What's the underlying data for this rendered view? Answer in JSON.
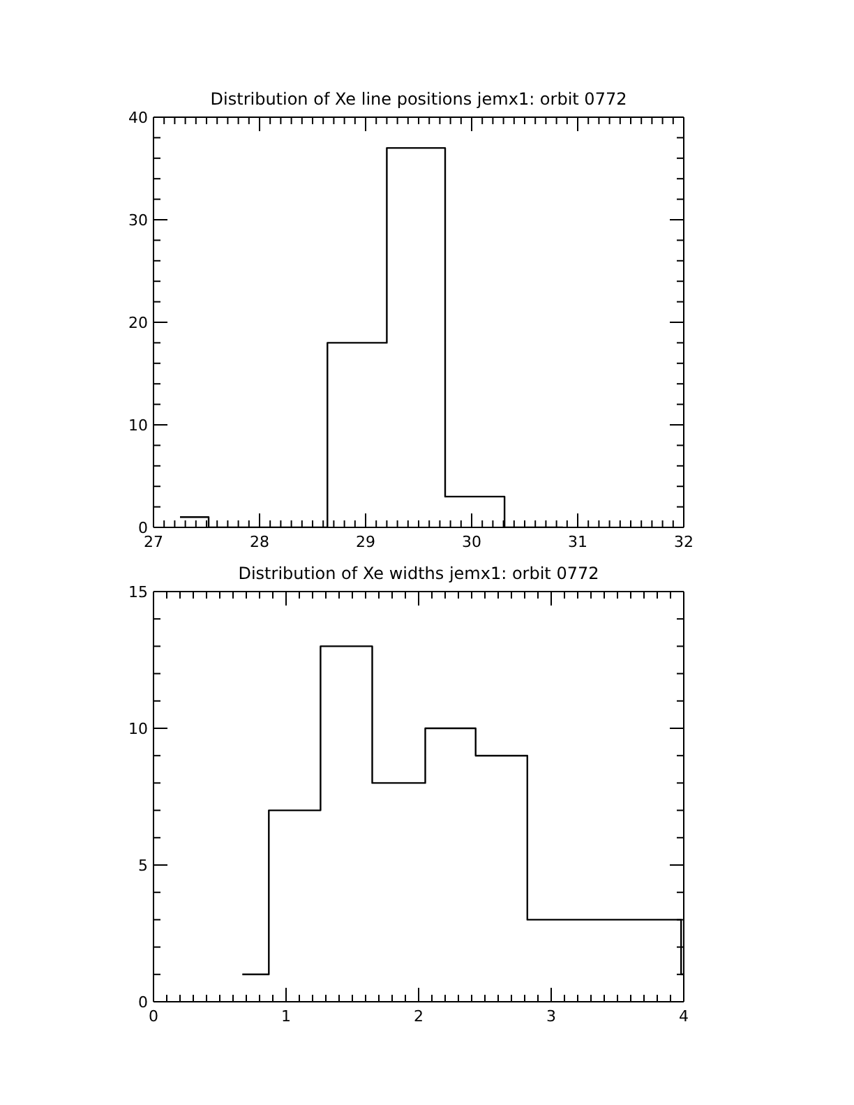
{
  "chart_data": [
    {
      "type": "histogram",
      "title": "Distribution of Xe line positions jemx1: orbit 0772",
      "bins": [
        27.25,
        27.52,
        28.08,
        28.64,
        29.2,
        29.75,
        30.31,
        30.86
      ],
      "values": [
        1,
        0,
        0,
        18,
        37,
        3,
        0
      ],
      "xlim": [
        27,
        32
      ],
      "ylim": [
        0,
        40
      ],
      "xticks": [
        27,
        {
          "value": 27.1,
          "label": null
        },
        {
          "value": 27.2,
          "label": null
        },
        {
          "value": 27.3,
          "label": null
        },
        {
          "value": 27.4,
          "label": null
        },
        {
          "value": 27.5,
          "label": null
        },
        {
          "value": 27.6,
          "label": null
        },
        {
          "value": 27.7,
          "label": null
        },
        {
          "value": 27.8,
          "label": null
        },
        {
          "value": 27.9,
          "label": null
        },
        28,
        {
          "value": 28.1,
          "label": null
        },
        {
          "value": 28.2,
          "label": null
        },
        {
          "value": 28.3,
          "label": null
        },
        {
          "value": 28.4,
          "label": null
        },
        {
          "value": 28.5,
          "label": null
        },
        {
          "value": 28.6,
          "label": null
        },
        {
          "value": 28.7,
          "label": null
        },
        {
          "value": 28.8,
          "label": null
        },
        {
          "value": 28.9,
          "label": null
        },
        29,
        {
          "value": 29.1,
          "label": null
        },
        {
          "value": 29.2,
          "label": null
        },
        {
          "value": 29.3,
          "label": null
        },
        {
          "value": 29.4,
          "label": null
        },
        {
          "value": 29.5,
          "label": null
        },
        {
          "value": 29.6,
          "label": null
        },
        {
          "value": 29.7,
          "label": null
        },
        {
          "value": 29.8,
          "label": null
        },
        {
          "value": 29.9,
          "label": null
        },
        30,
        {
          "value": 30.1,
          "label": null
        },
        {
          "value": 30.2,
          "label": null
        },
        {
          "value": 30.3,
          "label": null
        },
        {
          "value": 30.4,
          "label": null
        },
        {
          "value": 30.5,
          "label": null
        },
        {
          "value": 30.6,
          "label": null
        },
        {
          "value": 30.7,
          "label": null
        },
        {
          "value": 30.8,
          "label": null
        },
        {
          "value": 30.9,
          "label": null
        },
        31,
        {
          "value": 31.1,
          "label": null
        },
        {
          "value": 31.2,
          "label": null
        },
        {
          "value": 31.3,
          "label": null
        },
        {
          "value": 31.4,
          "label": null
        },
        {
          "value": 31.5,
          "label": null
        },
        {
          "value": 31.6,
          "label": null
        },
        {
          "value": 31.7,
          "label": null
        },
        {
          "value": 31.8,
          "label": null
        },
        {
          "value": 31.9,
          "label": null
        },
        32
      ],
      "yticks": [
        0,
        {
          "value": 2,
          "label": null
        },
        {
          "value": 4,
          "label": null
        },
        {
          "value": 6,
          "label": null
        },
        {
          "value": 8,
          "label": null
        },
        10,
        {
          "value": 12,
          "label": null
        },
        {
          "value": 14,
          "label": null
        },
        {
          "value": 16,
          "label": null
        },
        {
          "value": 18,
          "label": null
        },
        20,
        {
          "value": 22,
          "label": null
        },
        {
          "value": 24,
          "label": null
        },
        {
          "value": 26,
          "label": null
        },
        {
          "value": 28,
          "label": null
        },
        30,
        {
          "value": 32,
          "label": null
        },
        {
          "value": 34,
          "label": null
        },
        {
          "value": 36,
          "label": null
        },
        {
          "value": 38,
          "label": null
        },
        40
      ]
    },
    {
      "type": "histogram",
      "title": "Distribution of Xe widths jemx1: orbit 0772",
      "bins": [
        0.67,
        0.87,
        1.26,
        1.65,
        2.05,
        2.43,
        2.82,
        3.2,
        3.59,
        3.98,
        4.0
      ],
      "values": [
        1,
        7,
        13,
        8,
        10,
        9,
        3,
        3,
        3,
        1
      ],
      "xlim": [
        0,
        4
      ],
      "ylim": [
        0,
        15
      ],
      "xticks": [
        0,
        {
          "value": 0.1,
          "label": null
        },
        {
          "value": 0.2,
          "label": null
        },
        {
          "value": 0.3,
          "label": null
        },
        {
          "value": 0.4,
          "label": null
        },
        {
          "value": 0.5,
          "label": null
        },
        {
          "value": 0.6,
          "label": null
        },
        {
          "value": 0.7,
          "label": null
        },
        {
          "value": 0.8,
          "label": null
        },
        {
          "value": 0.9,
          "label": null
        },
        1,
        {
          "value": 1.1,
          "label": null
        },
        {
          "value": 1.2,
          "label": null
        },
        {
          "value": 1.3,
          "label": null
        },
        {
          "value": 1.4,
          "label": null
        },
        {
          "value": 1.5,
          "label": null
        },
        {
          "value": 1.6,
          "label": null
        },
        {
          "value": 1.7,
          "label": null
        },
        {
          "value": 1.8,
          "label": null
        },
        {
          "value": 1.9,
          "label": null
        },
        2,
        {
          "value": 2.1,
          "label": null
        },
        {
          "value": 2.2,
          "label": null
        },
        {
          "value": 2.3,
          "label": null
        },
        {
          "value": 2.4,
          "label": null
        },
        {
          "value": 2.5,
          "label": null
        },
        {
          "value": 2.6,
          "label": null
        },
        {
          "value": 2.7,
          "label": null
        },
        {
          "value": 2.8,
          "label": null
        },
        {
          "value": 2.9,
          "label": null
        },
        3,
        {
          "value": 3.1,
          "label": null
        },
        {
          "value": 3.2,
          "label": null
        },
        {
          "value": 3.3,
          "label": null
        },
        {
          "value": 3.4,
          "label": null
        },
        {
          "value": 3.5,
          "label": null
        },
        {
          "value": 3.6,
          "label": null
        },
        {
          "value": 3.7,
          "label": null
        },
        {
          "value": 3.8,
          "label": null
        },
        {
          "value": 3.9,
          "label": null
        },
        4
      ],
      "yticks": [
        0,
        {
          "value": 1,
          "label": null
        },
        {
          "value": 2,
          "label": null
        },
        {
          "value": 3,
          "label": null
        },
        {
          "value": 4,
          "label": null
        },
        5,
        {
          "value": 6,
          "label": null
        },
        {
          "value": 7,
          "label": null
        },
        {
          "value": 8,
          "label": null
        },
        {
          "value": 9,
          "label": null
        },
        10,
        {
          "value": 11,
          "label": null
        },
        {
          "value": 12,
          "label": null
        },
        {
          "value": 13,
          "label": null
        },
        {
          "value": 14,
          "label": null
        },
        15
      ]
    }
  ]
}
